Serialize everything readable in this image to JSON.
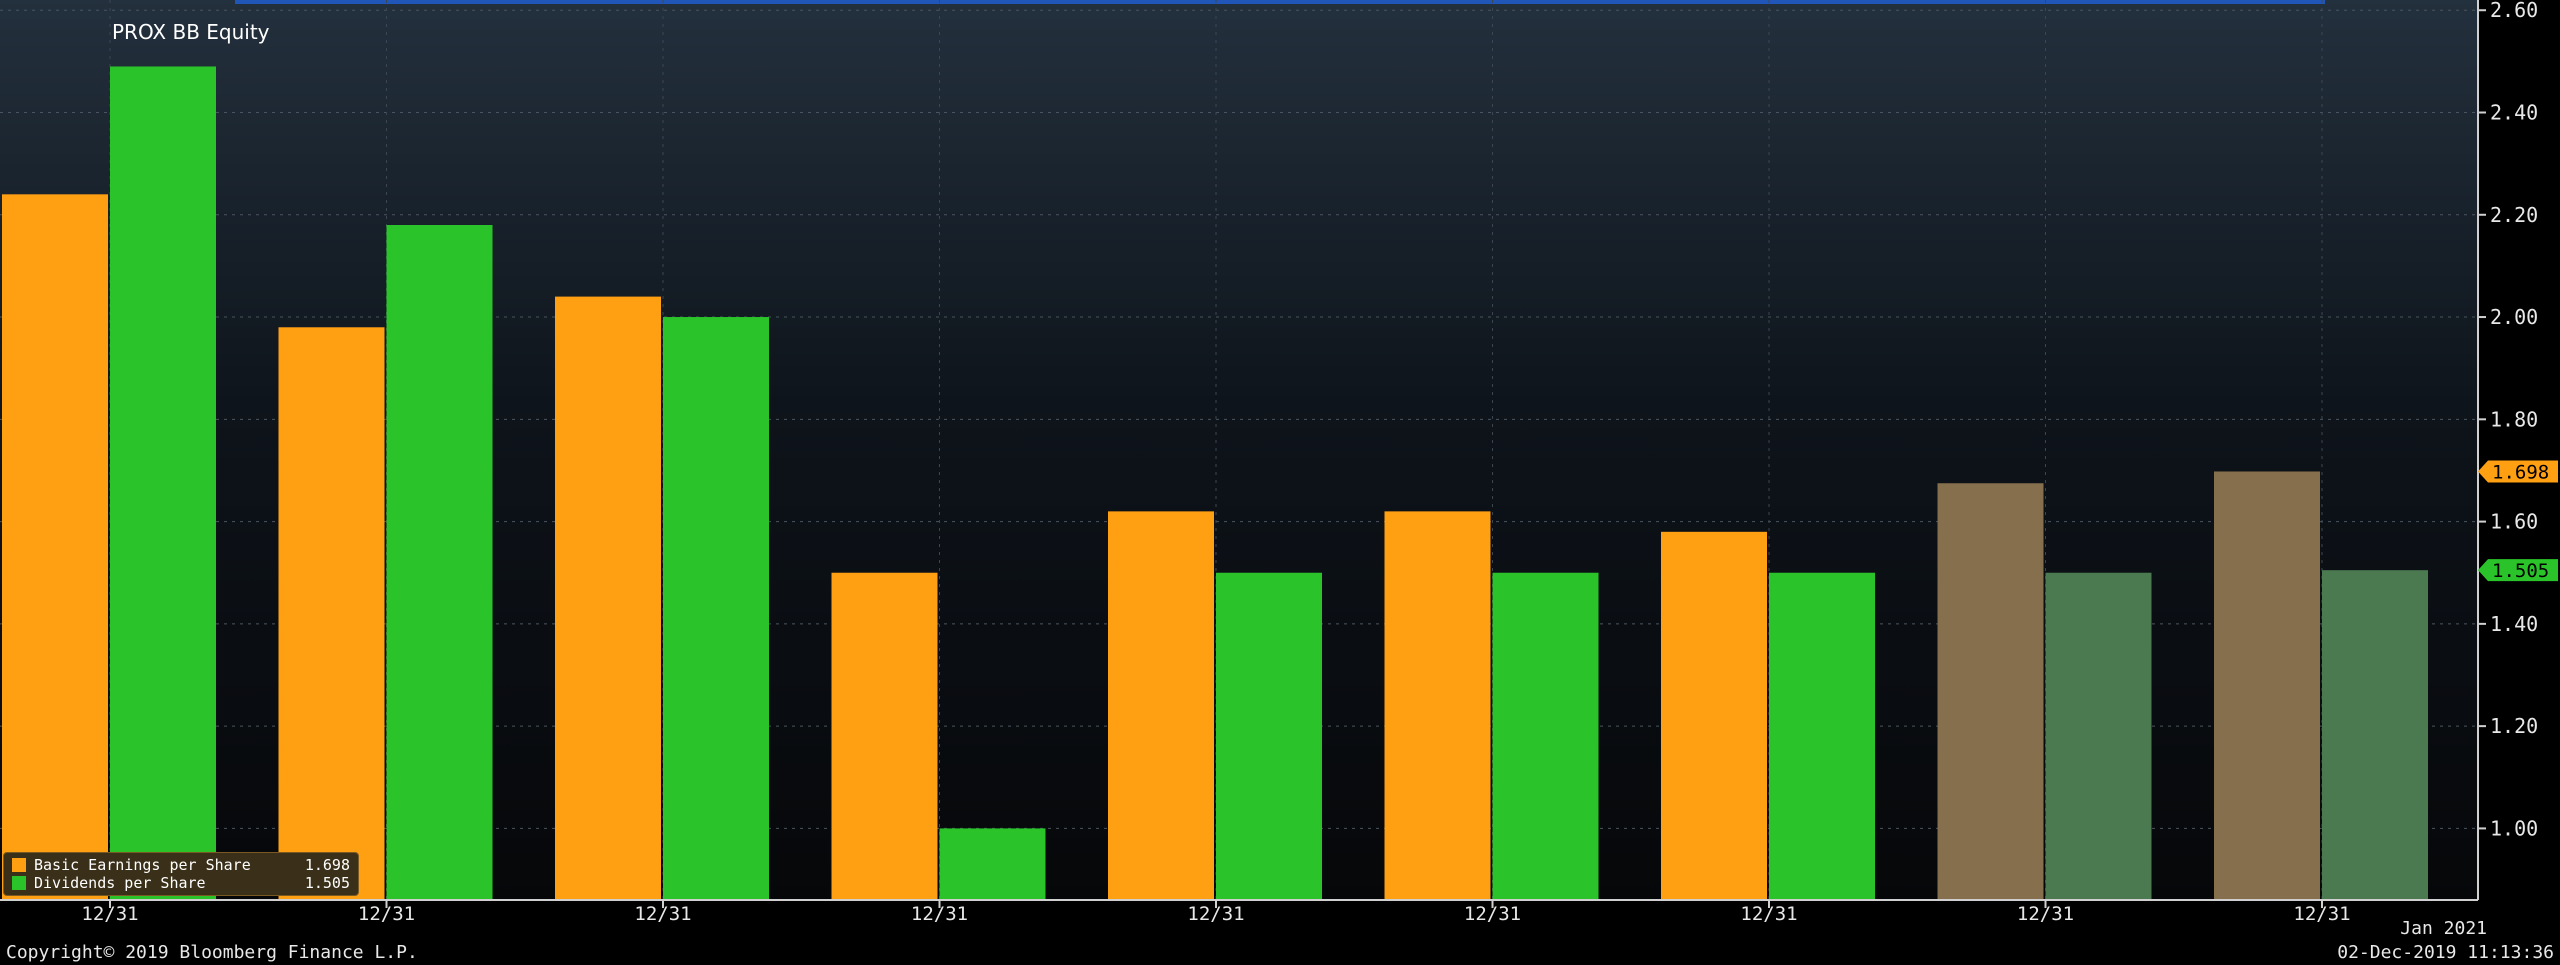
{
  "header": {
    "ticker": "PROX BB Equity"
  },
  "footer": {
    "copyright": "Copyright© 2019 Bloomberg Finance L.P.",
    "timestamp": "02-Dec-2019 11:13:36",
    "next_period": "Jan 2021"
  },
  "legend": [
    {
      "name": "Basic Earnings per Share",
      "value": "1.698",
      "color": "#ff9f12"
    },
    {
      "name": "Dividends per Share",
      "value": "1.505",
      "color": "#2ac42a"
    }
  ],
  "chart_data": {
    "type": "bar",
    "categories": [
      "12/31",
      "12/31",
      "12/31",
      "12/31",
      "12/31",
      "12/31",
      "12/31",
      "12/31",
      "12/31"
    ],
    "series": [
      {
        "name": "Basic Earnings per Share",
        "values": [
          2.24,
          1.98,
          2.04,
          1.5,
          1.62,
          1.62,
          1.58,
          1.675,
          1.698
        ],
        "color": "#ff9f12",
        "estimate_color": "#866f4d"
      },
      {
        "name": "Dividends per Share",
        "values": [
          2.49,
          2.18,
          2.0,
          1.0,
          1.5,
          1.5,
          1.5,
          1.5,
          1.505
        ],
        "color": "#2ac42a",
        "estimate_color": "#4b7950"
      }
    ],
    "estimate_from_index": 7,
    "ylim": [
      0.86,
      2.62
    ],
    "yticks": [
      "1.00",
      "1.20",
      "1.40",
      "1.60",
      "1.80",
      "2.00",
      "2.20",
      "2.40",
      "2.60"
    ],
    "last_value_labels": [
      "1.698",
      "1.505"
    ],
    "grid": true,
    "legend_position": "bottom-left"
  }
}
